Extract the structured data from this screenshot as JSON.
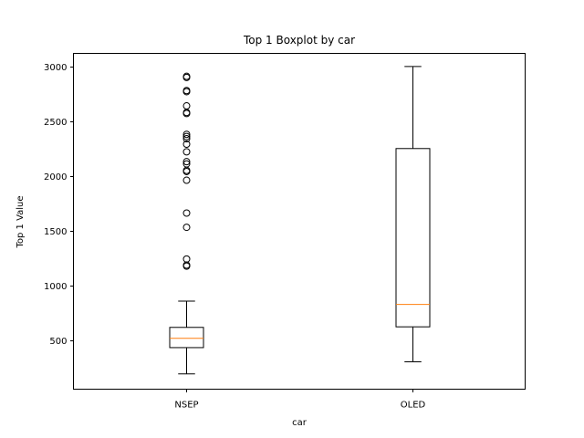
{
  "chart_data": {
    "type": "boxplot",
    "title": "Top 1 Boxplot by car",
    "xlabel": "car",
    "ylabel": "Top 1 Value",
    "ylim": [
      50,
      3120
    ],
    "yticks": [
      500,
      1000,
      1500,
      2000,
      2500,
      3000
    ],
    "grid": false,
    "colors": {
      "box": "#000000",
      "median": "#ff7f0e"
    },
    "categories": [
      "NSEP",
      "OLED"
    ],
    "boxes": [
      {
        "name": "NSEP",
        "whisker_low": 190,
        "q1": 430,
        "median": 515,
        "q3": 615,
        "whisker_high": 855,
        "outliers": [
          1175,
          1185,
          1240,
          1530,
          1660,
          1960,
          2040,
          2050,
          2110,
          2130,
          2220,
          2290,
          2340,
          2360,
          2380,
          2570,
          2580,
          2640,
          2770,
          2780,
          2900,
          2910
        ]
      },
      {
        "name": "OLED",
        "whisker_low": 300,
        "q1": 620,
        "median": 825,
        "q3": 2250,
        "whisker_high": 3000,
        "outliers": []
      }
    ]
  }
}
